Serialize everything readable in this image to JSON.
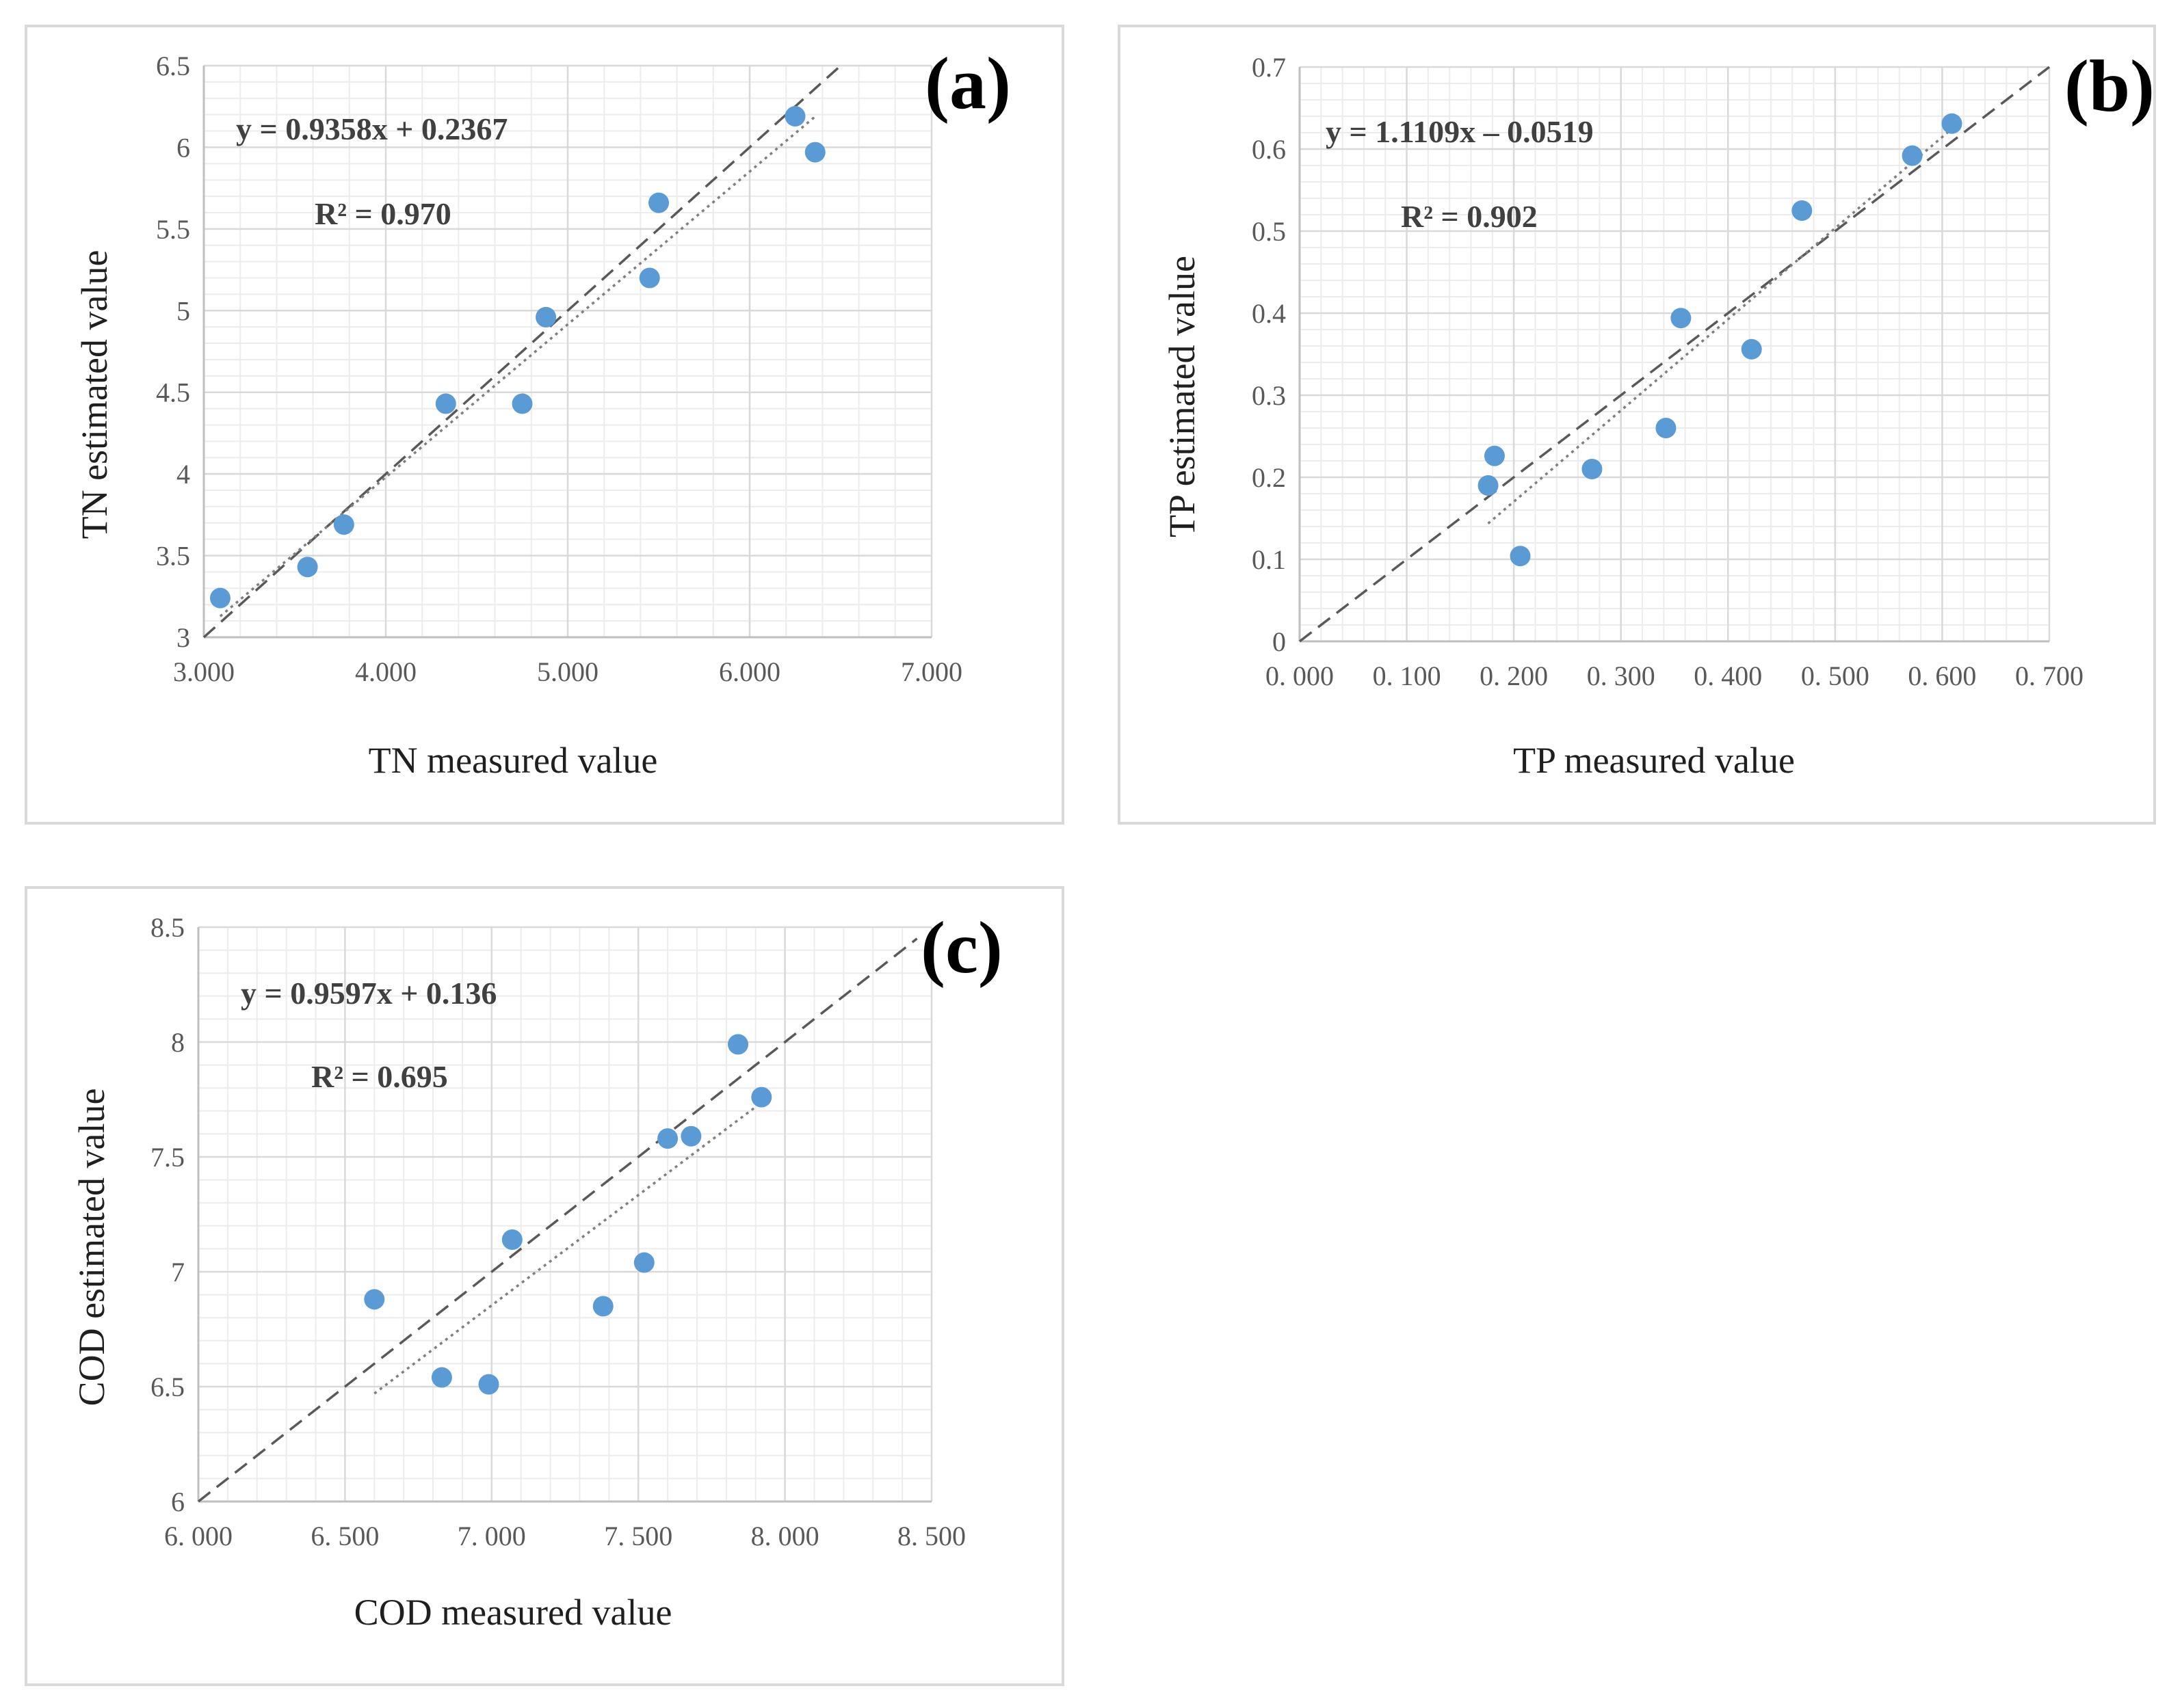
{
  "colors": {
    "point": "#5B9BD5",
    "grid": "#d9d9d9",
    "grid_minor": "#ececec",
    "identity_line": "#595959",
    "trend_line": "#7f7f7f",
    "panel_border": "#d9d9d9"
  },
  "chart_data": [
    {
      "id": "a",
      "type": "scatter",
      "panel_label": "(a)",
      "xlabel": "TN measured value",
      "ylabel": "TN estimated value",
      "equation": "y = 0.9358x + 0.2367",
      "r2": "R² = 0.970",
      "xlim": [
        3.0,
        7.0
      ],
      "ylim": [
        3.0,
        6.5
      ],
      "xticks": [
        3.0,
        4.0,
        5.0,
        6.0,
        7.0
      ],
      "xtick_labels": [
        "3.000",
        "4.000",
        "5.000",
        "6.000",
        "7.000"
      ],
      "yticks": [
        3,
        3.5,
        4,
        4.5,
        5,
        5.5,
        6,
        6.5
      ],
      "ytick_labels": [
        "3",
        "3.5",
        "4",
        "4.5",
        "5",
        "5.5",
        "6",
        "6.5"
      ],
      "points": [
        [
          3.09,
          3.24
        ],
        [
          3.57,
          3.43
        ],
        [
          3.77,
          3.69
        ],
        [
          4.33,
          4.43
        ],
        [
          4.75,
          4.43
        ],
        [
          4.88,
          4.96
        ],
        [
          5.45,
          5.2
        ],
        [
          5.5,
          5.66
        ],
        [
          6.25,
          6.19
        ],
        [
          6.36,
          5.97
        ]
      ],
      "identity_line": [
        [
          3.0,
          3.0
        ],
        [
          6.5,
          6.5
        ]
      ],
      "trend_line": {
        "slope": 0.9358,
        "intercept": 0.2367,
        "x_range": [
          3.09,
          6.36
        ]
      }
    },
    {
      "id": "b",
      "type": "scatter",
      "panel_label": "(b)",
      "xlabel": "TP measured value",
      "ylabel": "TP estimated value",
      "equation": "y = 1.1109x – 0.0519",
      "r2": "R² = 0.902",
      "xlim": [
        0.0,
        0.7
      ],
      "ylim": [
        0.0,
        0.7
      ],
      "xticks": [
        0.0,
        0.1,
        0.2,
        0.3,
        0.4,
        0.5,
        0.6,
        0.7
      ],
      "xtick_labels": [
        "0. 000",
        "0. 100",
        "0. 200",
        "0. 300",
        "0. 400",
        "0. 500",
        "0. 600",
        "0. 700"
      ],
      "yticks": [
        0,
        0.1,
        0.2,
        0.3,
        0.4,
        0.5,
        0.6,
        0.7
      ],
      "ytick_labels": [
        "0",
        "0.1",
        "0.2",
        "0.3",
        "0.4",
        "0.5",
        "0.6",
        "0.7"
      ],
      "points": [
        [
          0.176,
          0.19
        ],
        [
          0.182,
          0.226
        ],
        [
          0.206,
          0.104
        ],
        [
          0.273,
          0.21
        ],
        [
          0.342,
          0.26
        ],
        [
          0.356,
          0.394
        ],
        [
          0.422,
          0.356
        ],
        [
          0.469,
          0.525
        ],
        [
          0.572,
          0.592
        ],
        [
          0.609,
          0.631
        ]
      ],
      "identity_line": [
        [
          0.0,
          0.0
        ],
        [
          0.7,
          0.7
        ]
      ],
      "trend_line": {
        "slope": 1.1109,
        "intercept": -0.0519,
        "x_range": [
          0.176,
          0.609
        ]
      }
    },
    {
      "id": "c",
      "type": "scatter",
      "panel_label": "(c)",
      "xlabel": "COD measured value",
      "ylabel": "COD estimated value",
      "equation": "y = 0.9597x + 0.136",
      "r2": "R² = 0.695",
      "xlim": [
        6.0,
        8.5
      ],
      "ylim": [
        6.0,
        8.5
      ],
      "xticks": [
        6.0,
        6.5,
        7.0,
        7.5,
        8.0,
        8.5
      ],
      "xtick_labels": [
        "6. 000",
        "6. 500",
        "7. 000",
        "7. 500",
        "8. 000",
        "8. 500"
      ],
      "yticks": [
        6,
        6.5,
        7,
        7.5,
        8,
        8.5
      ],
      "ytick_labels": [
        "6",
        "6.5",
        "7",
        "7.5",
        "8",
        "8.5"
      ],
      "points": [
        [
          6.6,
          6.88
        ],
        [
          6.83,
          6.54
        ],
        [
          6.99,
          6.51
        ],
        [
          7.07,
          7.14
        ],
        [
          7.38,
          6.85
        ],
        [
          7.52,
          7.04
        ],
        [
          7.6,
          7.58
        ],
        [
          7.68,
          7.59
        ],
        [
          7.84,
          7.99
        ],
        [
          7.92,
          7.76
        ]
      ],
      "identity_line": [
        [
          6.0,
          6.0
        ],
        [
          8.45,
          8.45
        ]
      ],
      "trend_line": {
        "slope": 0.9597,
        "intercept": 0.136,
        "x_range": [
          6.6,
          7.92
        ]
      }
    }
  ]
}
